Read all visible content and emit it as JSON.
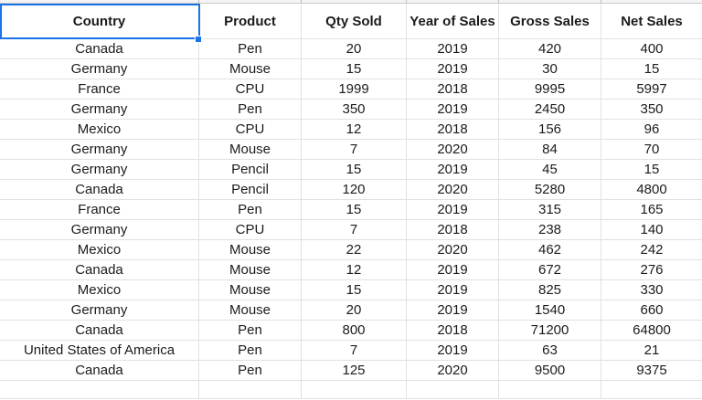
{
  "app": {
    "type": "spreadsheet-grid"
  },
  "colors": {
    "selection_border": "#1a73e8",
    "gridline": "#e1e1e1",
    "text": "#1b1b1b"
  },
  "selection": {
    "selected_header": "Country",
    "has_fill_handle": true
  },
  "table": {
    "columns": [
      "Country",
      "Product",
      "Qty Sold",
      "Year of Sales",
      "Gross Sales",
      "Net Sales"
    ],
    "rows": [
      [
        "Canada",
        "Pen",
        "20",
        "2019",
        "420",
        "400"
      ],
      [
        "Germany",
        "Mouse",
        "15",
        "2019",
        "30",
        "15"
      ],
      [
        "France",
        "CPU",
        "1999",
        "2018",
        "9995",
        "5997"
      ],
      [
        "Germany",
        "Pen",
        "350",
        "2019",
        "2450",
        "350"
      ],
      [
        "Mexico",
        "CPU",
        "12",
        "2018",
        "156",
        "96"
      ],
      [
        "Germany",
        "Mouse",
        "7",
        "2020",
        "84",
        "70"
      ],
      [
        "Germany",
        "Pencil",
        "15",
        "2019",
        "45",
        "15"
      ],
      [
        "Canada",
        "Pencil",
        "120",
        "2020",
        "5280",
        "4800"
      ],
      [
        "France",
        "Pen",
        "15",
        "2019",
        "315",
        "165"
      ],
      [
        "Germany",
        "CPU",
        "7",
        "2018",
        "238",
        "140"
      ],
      [
        "Mexico",
        "Mouse",
        "22",
        "2020",
        "462",
        "242"
      ],
      [
        "Canada",
        "Mouse",
        "12",
        "2019",
        "672",
        "276"
      ],
      [
        "Mexico",
        "Mouse",
        "15",
        "2019",
        "825",
        "330"
      ],
      [
        "Germany",
        "Mouse",
        "20",
        "2019",
        "1540",
        "660"
      ],
      [
        "Canada",
        "Pen",
        "800",
        "2018",
        "71200",
        "64800"
      ],
      [
        "United States of America",
        "Pen",
        "7",
        "2019",
        "63",
        "21"
      ],
      [
        "Canada",
        "Pen",
        "125",
        "2020",
        "9500",
        "9375"
      ]
    ]
  }
}
